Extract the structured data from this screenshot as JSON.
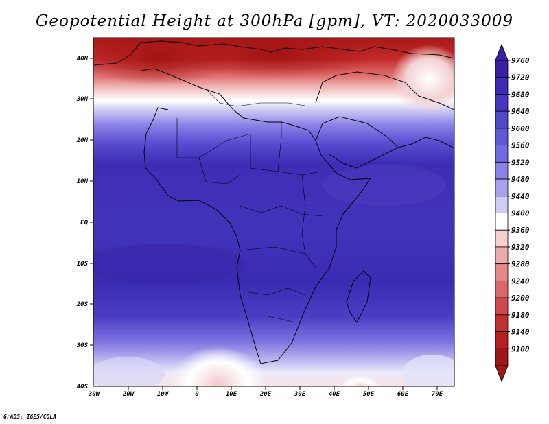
{
  "title": "Geopotential Height at 300hPa [gpm], VT: 2020033009",
  "credit": "GrADS: IGES/COLA",
  "map": {
    "region": "Africa",
    "lat_labels": [
      "40N",
      "30N",
      "20N",
      "10N",
      "EQ",
      "10S",
      "20S",
      "30S",
      "40S"
    ],
    "lon_labels": [
      "30W",
      "20W",
      "10W",
      "0",
      "10E",
      "20E",
      "30E",
      "40E",
      "50E",
      "60E",
      "70E"
    ]
  },
  "colorbar": {
    "levels": [
      "9760",
      "9720",
      "9680",
      "9640",
      "9600",
      "9560",
      "9520",
      "9480",
      "9440",
      "9400",
      "9360",
      "9320",
      "9280",
      "9240",
      "9200",
      "9180",
      "9140",
      "9100"
    ],
    "colors": [
      "#3a1fa4",
      "#3d2cb3",
      "#4536c0",
      "#5246cc",
      "#6056d6",
      "#7268df",
      "#8b82e7",
      "#a8a2ee",
      "#cfcdf5",
      "#ffffff",
      "#f6cfcf",
      "#eeaaaa",
      "#e48888",
      "#da6868",
      "#d04848",
      "#c43030",
      "#b42020",
      "#a01515"
    ]
  }
}
